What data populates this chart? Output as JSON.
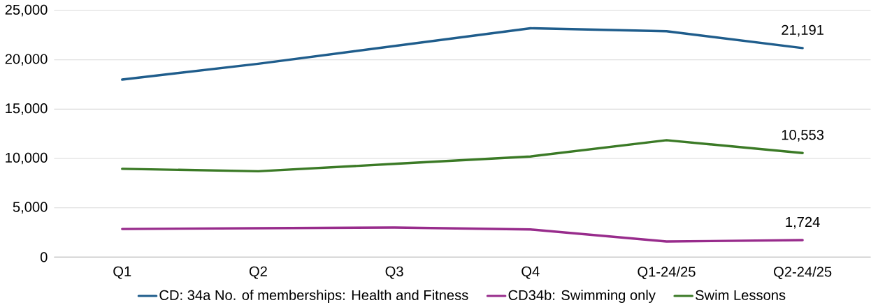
{
  "chart_data": {
    "type": "line",
    "categories": [
      "Q1",
      "Q2",
      "Q3",
      "Q4",
      "Q1-24/25",
      "Q2-24/25"
    ],
    "series": [
      {
        "name": "CD: 34a No. of memberships: Health and Fitness",
        "color": "#1f5d8c",
        "values": [
          18000,
          19600,
          21400,
          23200,
          22900,
          21191
        ],
        "value_labels": [
          null,
          null,
          null,
          null,
          null,
          "21,191"
        ]
      },
      {
        "name": "CD34b: Swimming only",
        "color": "#982c8c",
        "values": [
          2850,
          2930,
          3000,
          2800,
          1580,
          1724
        ],
        "value_labels": [
          null,
          null,
          null,
          null,
          null,
          "1,724"
        ]
      },
      {
        "name": "Swim Lessons",
        "color": "#3b7a26",
        "values": [
          8950,
          8700,
          9450,
          10200,
          11850,
          10553
        ],
        "value_labels": [
          null,
          null,
          null,
          null,
          null,
          "10,553"
        ]
      }
    ],
    "ylim": [
      0,
      25000
    ],
    "yticks": [
      {
        "value": 0,
        "label": "0"
      },
      {
        "value": 5000,
        "label": "5,000"
      },
      {
        "value": 10000,
        "label": "10,000"
      },
      {
        "value": 15000,
        "label": "15,000"
      },
      {
        "value": 20000,
        "label": "20,000"
      },
      {
        "value": 25000,
        "label": "25,000"
      }
    ],
    "grid": "y",
    "legend": "bottom",
    "line_style": "solid"
  }
}
